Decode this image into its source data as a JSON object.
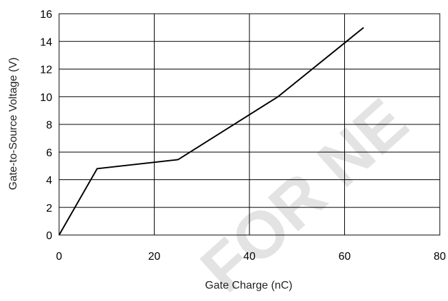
{
  "watermark": "FOR NE",
  "chart_data": {
    "type": "line",
    "title": "",
    "xlabel": "Gate Charge (nC)",
    "ylabel": "Gate-to-Source Voltage (V)",
    "xlim": [
      0,
      80
    ],
    "ylim": [
      0,
      16
    ],
    "xticks": [
      0,
      20,
      40,
      60,
      80
    ],
    "yticks": [
      0,
      2,
      4,
      6,
      8,
      10,
      12,
      14,
      16
    ],
    "grid": true,
    "legend": "none",
    "colors": {
      "line": "#000000",
      "grid": "#000000"
    },
    "series": [
      {
        "x": [
          0,
          8,
          25,
          46,
          64
        ],
        "y": [
          0,
          4.8,
          5.45,
          10,
          15
        ]
      }
    ]
  }
}
